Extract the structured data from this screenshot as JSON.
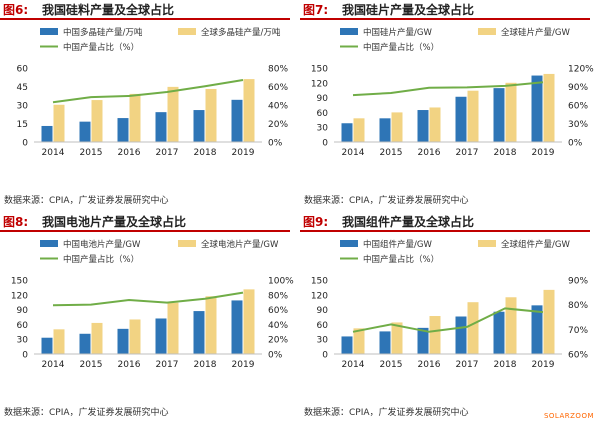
{
  "colors": {
    "china_bar": "#2e75b6",
    "global_bar": "#f2d383",
    "share_line": "#70ad47",
    "title_accent": "#c00000",
    "watermark": "#ff6600"
  },
  "charts": [
    {
      "fig_label": "图6:",
      "title": "我国硅料产量及全球占比",
      "source": "数据来源：CPIA，广发证券发展研究中心",
      "chart_data": {
        "type": "bar",
        "categories": [
          "2014",
          "2015",
          "2016",
          "2017",
          "2018",
          "2019"
        ],
        "series": [
          {
            "name": "中国多晶硅产量/万吨",
            "kind": "bar",
            "axis": "left",
            "color": "#2e75b6",
            "values": [
              13,
              16.5,
              19.4,
              24.2,
              25.9,
              34.2
            ]
          },
          {
            "name": "全球多晶硅产量/万吨",
            "kind": "bar",
            "axis": "left",
            "color": "#f2d383",
            "values": [
              30.2,
              34,
              39,
              44.7,
              43,
              51
            ]
          },
          {
            "name": "中国产量占比（%）",
            "kind": "line",
            "axis": "right",
            "color": "#70ad47",
            "values": [
              43,
              48.5,
              49.7,
              54,
              60.2,
              67
            ]
          }
        ],
        "left_axis": {
          "min": 0,
          "max": 60,
          "ticks": [
            "0",
            "15",
            "30",
            "45",
            "60"
          ]
        },
        "right_axis": {
          "min": 0,
          "max": 80,
          "ticks": [
            "0%",
            "20%",
            "40%",
            "60%",
            "80%"
          ]
        }
      }
    },
    {
      "fig_label": "图7:",
      "title": "我国硅片产量及全球占比",
      "source": "数据来源：CPIA，广发证券发展研究中心",
      "chart_data": {
        "type": "bar",
        "categories": [
          "2014",
          "2015",
          "2016",
          "2017",
          "2018",
          "2019"
        ],
        "series": [
          {
            "name": "中国硅片产量/GW",
            "kind": "bar",
            "axis": "left",
            "color": "#2e75b6",
            "values": [
              38,
              48,
              64.8,
              91.7,
              109.2,
              134.7
            ]
          },
          {
            "name": "全球硅片产量/GW",
            "kind": "bar",
            "axis": "left",
            "color": "#f2d383",
            "values": [
              48,
              60,
              70,
              104,
              120,
              138
            ]
          },
          {
            "name": "中国产量占比（%）",
            "kind": "line",
            "axis": "right",
            "color": "#70ad47",
            "values": [
              76,
              79.5,
              88,
              88.5,
              91,
              97
            ]
          }
        ],
        "left_axis": {
          "min": 0,
          "max": 150,
          "ticks": [
            "0",
            "30",
            "60",
            "90",
            "120",
            "150"
          ]
        },
        "right_axis": {
          "min": 0,
          "max": 120,
          "ticks": [
            "0%",
            "30%",
            "60%",
            "90%",
            "120%"
          ]
        }
      }
    },
    {
      "fig_label": "图8:",
      "title": "我国电池片产量及全球占比",
      "source": "数据来源：CPIA，广发证券发展研究中心",
      "chart_data": {
        "type": "bar",
        "categories": [
          "2014",
          "2015",
          "2016",
          "2017",
          "2018",
          "2019"
        ],
        "series": [
          {
            "name": "中国电池片产量/GW",
            "kind": "bar",
            "axis": "left",
            "color": "#2e75b6",
            "values": [
              33,
              41,
              51,
              72,
              87,
              108.6
            ]
          },
          {
            "name": "全球电池片产量/GW",
            "kind": "bar",
            "axis": "left",
            "color": "#f2d383",
            "values": [
              50,
              63,
              70,
              104,
              117,
              131
            ]
          },
          {
            "name": "中国产量占比（%）",
            "kind": "line",
            "axis": "right",
            "color": "#70ad47",
            "values": [
              66,
              66.7,
              73,
              69.4,
              74.7,
              83
            ]
          }
        ],
        "left_axis": {
          "min": 0,
          "max": 150,
          "ticks": [
            "0",
            "30",
            "60",
            "90",
            "120",
            "150"
          ]
        },
        "right_axis": {
          "min": 0,
          "max": 100,
          "ticks": [
            "0%",
            "20%",
            "40%",
            "60%",
            "80%",
            "100%"
          ]
        }
      }
    },
    {
      "fig_label": "图9:",
      "title": "我国组件产量及全球占比",
      "source": "数据来源：CPIA，广发证券发展研究中心",
      "chart_data": {
        "type": "bar",
        "categories": [
          "2014",
          "2015",
          "2016",
          "2017",
          "2018",
          "2019"
        ],
        "series": [
          {
            "name": "中国组件产量/GW",
            "kind": "bar",
            "axis": "left",
            "color": "#2e75b6",
            "values": [
              35.6,
              45.8,
              53,
              76,
              85.7,
              98.6
            ]
          },
          {
            "name": "全球组件产量/GW",
            "kind": "bar",
            "axis": "left",
            "color": "#f2d383",
            "values": [
              52,
              64,
              77,
              105,
              115,
              130
            ]
          },
          {
            "name": "中国产量占比（%）",
            "kind": "line",
            "axis": "right",
            "color": "#70ad47",
            "values": [
              69,
              72,
              69,
              71,
              78.5,
              77
            ]
          }
        ],
        "left_axis": {
          "min": 0,
          "max": 150,
          "ticks": [
            "0",
            "30",
            "60",
            "90",
            "120",
            "150"
          ]
        },
        "right_axis": {
          "min": 60,
          "max": 90,
          "ticks": [
            "60%",
            "70%",
            "80%",
            "90%"
          ]
        }
      }
    }
  ],
  "watermark": "SOLARZOOM"
}
